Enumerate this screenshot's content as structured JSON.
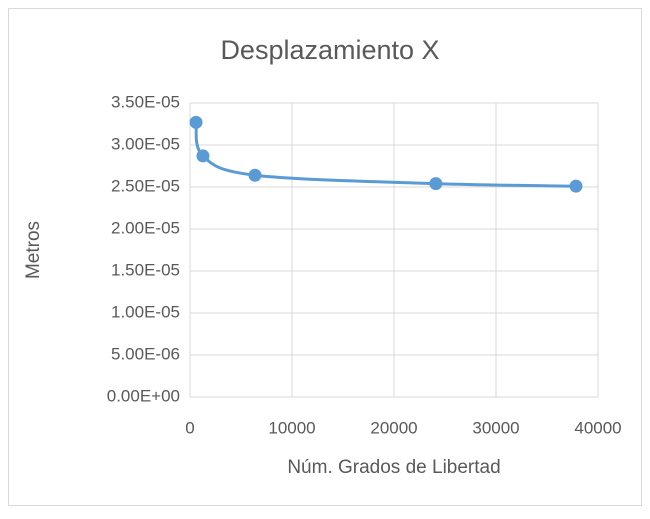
{
  "chart_data": {
    "type": "scatter",
    "title": "Desplazamiento X",
    "x_label": "Núm. Grados de Libertad",
    "y_label": "Metros",
    "series": [
      {
        "name": "Desplazamiento X",
        "color": "#5b9bd5",
        "x": [
          590,
          1270,
          6370,
          24100,
          37840
        ],
        "values": [
          3.27e-05,
          2.87e-05,
          2.64e-05,
          2.54e-05,
          2.51e-05
        ]
      }
    ],
    "xlim": [
      0,
      40000
    ],
    "xticks": [
      0,
      10000,
      20000,
      30000,
      40000
    ],
    "ylim": [
      0,
      3.5e-05
    ],
    "yticks": [
      {
        "value": 0,
        "label": "0.00E+00"
      },
      {
        "value": 5e-06,
        "label": "5.00E-06"
      },
      {
        "value": 1e-05,
        "label": "1.00E-05"
      },
      {
        "value": 1.5e-05,
        "label": "1.50E-05"
      },
      {
        "value": 2e-05,
        "label": "2.00E-05"
      },
      {
        "value": 2.5e-05,
        "label": "2.50E-05"
      },
      {
        "value": 3e-05,
        "label": "3.00E-05"
      },
      {
        "value": 3.5e-05,
        "label": "3.50E-05"
      }
    ],
    "grid": true,
    "smooth": true
  }
}
